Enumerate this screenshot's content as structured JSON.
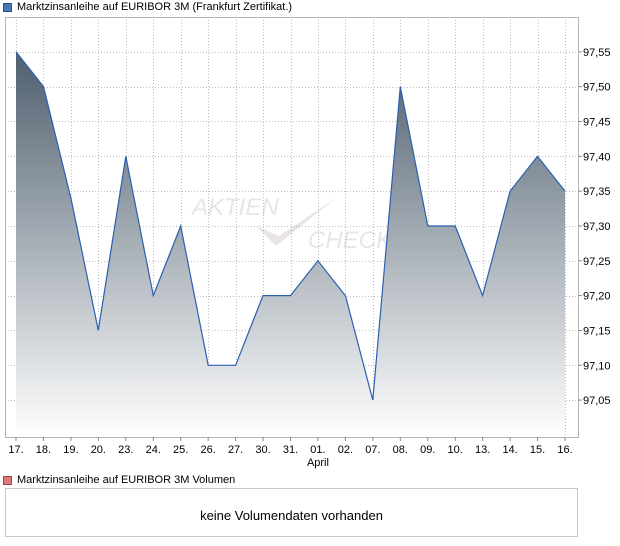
{
  "legend": {
    "series_label": "Marktzinsanleihe auf EURIBOR 3M (Frankfurt Zertifikat.)",
    "series_color": "#4a78b7"
  },
  "watermark": {
    "line1": "AKTIEN",
    "line2": "CHECK"
  },
  "volume": {
    "label": "Marktzinsanleihe auf EURIBOR 3M Volumen",
    "label_color": "#e07a7a",
    "message": "keine Volumendaten vorhanden"
  },
  "colors": {
    "line": "#2b5fb0",
    "fill_top": "#4f5f6e",
    "fill_bottom": "#ffffff",
    "grid": "#bdbdbd",
    "frame": "#b5b5b5"
  },
  "chart_data": {
    "type": "area",
    "x": [
      "17.",
      "18.",
      "19.",
      "20.",
      "23.",
      "24.",
      "25.",
      "26.",
      "27.",
      "30.",
      "31.",
      "01.",
      "02.",
      "07.",
      "08.",
      "09.",
      "10.",
      "13.",
      "14.",
      "15.",
      "16."
    ],
    "month_labels": [
      {
        "at": "01.",
        "label": "April"
      }
    ],
    "series": [
      {
        "values": [
          97.55,
          97.5,
          97.34,
          97.15,
          97.4,
          97.2,
          97.3,
          97.1,
          97.1,
          97.2,
          97.2,
          97.25,
          97.2,
          97.05,
          97.5,
          97.3,
          97.3,
          97.2,
          97.35,
          97.4,
          97.35
        ]
      }
    ],
    "yticks": [
      97.05,
      97.1,
      97.15,
      97.2,
      97.25,
      97.3,
      97.35,
      97.4,
      97.45,
      97.5,
      97.55
    ],
    "ytick_labels": [
      "97,05",
      "97,10",
      "97,15",
      "97,20",
      "97,25",
      "97,30",
      "97,35",
      "97,40",
      "97,45",
      "97,50",
      "97,55"
    ],
    "ylim": [
      96.997,
      97.6
    ],
    "grid": true,
    "y_axis_position": "right"
  }
}
